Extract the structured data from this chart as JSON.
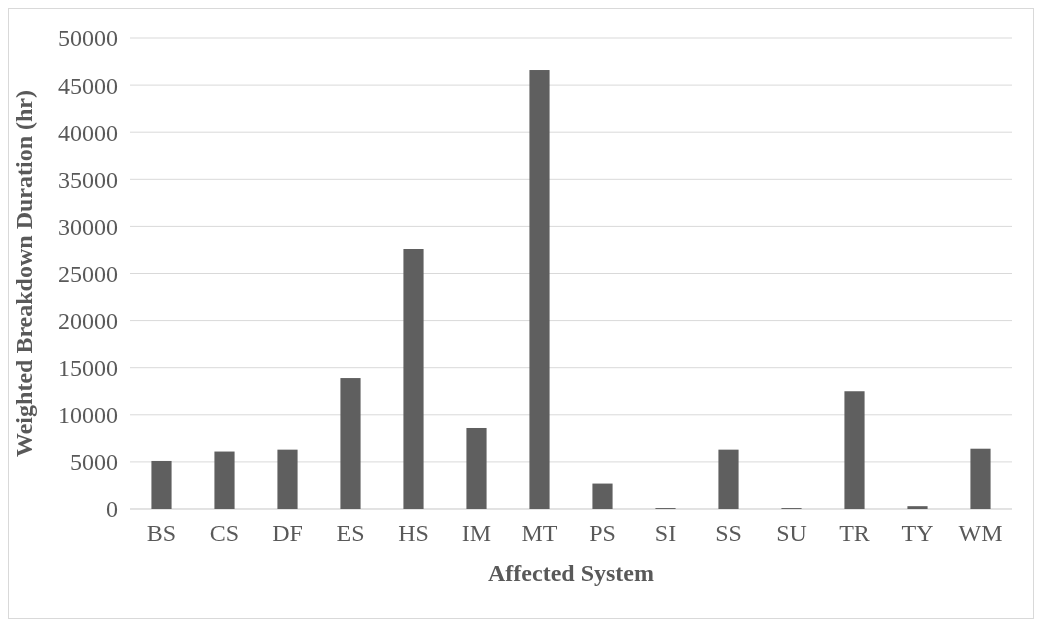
{
  "chart_data": {
    "type": "bar",
    "xlabel": "Affected System",
    "ylabel": "Weighted Breakdown Duration (hr)",
    "categories": [
      "BS",
      "CS",
      "DF",
      "ES",
      "HS",
      "IM",
      "MT",
      "PS",
      "SI",
      "SS",
      "SU",
      "TR",
      "TY",
      "WM"
    ],
    "values": [
      5100,
      6100,
      6300,
      13900,
      27600,
      8600,
      46600,
      2700,
      100,
      6300,
      100,
      12500,
      300,
      6400
    ],
    "color": "#5f5f5f",
    "ylim": [
      0,
      50000
    ],
    "yticks": [
      0,
      5000,
      10000,
      15000,
      20000,
      25000,
      30000,
      35000,
      40000,
      45000,
      50000
    ],
    "grid": "y"
  }
}
